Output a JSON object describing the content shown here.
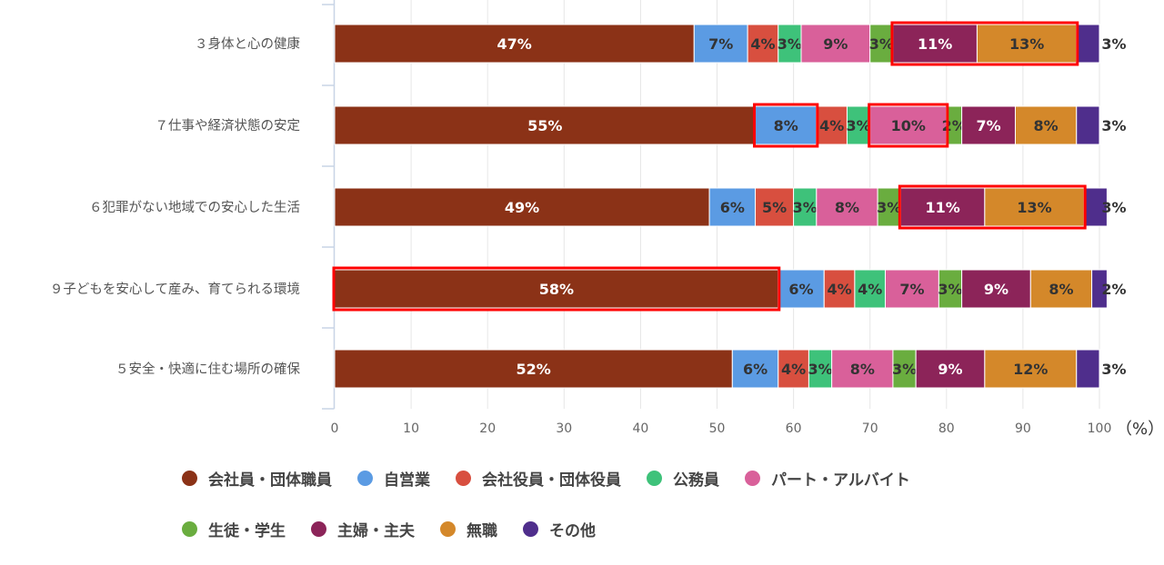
{
  "chart_data": {
    "type": "bar",
    "orientation": "horizontal",
    "stacked": true,
    "categories": [
      "３身体と心の健康",
      "７仕事や経済状態の安定",
      "６犯罪がない地域での安心した生活",
      "９子どもを安心して産み、育てられる環境",
      "５安全・快適に住む場所の確保"
    ],
    "series": [
      {
        "name": "会社員・団体職員",
        "color": "#8b3217",
        "values": [
          47,
          55,
          49,
          58,
          52
        ],
        "labels": [
          "47%",
          "55%",
          "49%",
          "58%",
          "52%"
        ]
      },
      {
        "name": "自営業",
        "color": "#5b9be3",
        "values": [
          7,
          8,
          6,
          6,
          6
        ],
        "labels": [
          "7%",
          "8%",
          "6%",
          "6%",
          "6%"
        ]
      },
      {
        "name": "会社役員・団体役員",
        "color": "#d84f3f",
        "values": [
          4,
          4,
          5,
          4,
          4
        ],
        "labels": [
          "4%",
          "4%",
          "5%",
          "4%",
          "4%"
        ]
      },
      {
        "name": "公務員",
        "color": "#3ec27a",
        "values": [
          3,
          3,
          3,
          4,
          3
        ],
        "labels": [
          "3%",
          "3%",
          "3%",
          "4%",
          "3%"
        ]
      },
      {
        "name": "パート・アルバイト",
        "color": "#d9609a",
        "values": [
          9,
          10,
          8,
          7,
          8
        ],
        "labels": [
          "9%",
          "10%",
          "8%",
          "7%",
          "8%"
        ]
      },
      {
        "name": "生徒・学生",
        "color": "#6aad3f",
        "values": [
          3,
          2,
          3,
          3,
          3
        ],
        "labels": [
          "3%",
          "2%",
          "3%",
          "3%",
          "3%"
        ]
      },
      {
        "name": "主婦・主夫",
        "color": "#8c2459",
        "values": [
          11,
          7,
          11,
          9,
          9
        ],
        "labels": [
          "11%",
          "7%",
          "11%",
          "9%",
          "9%"
        ]
      },
      {
        "name": "無職",
        "color": "#d4882a",
        "values": [
          13,
          8,
          13,
          8,
          12
        ],
        "labels": [
          "13%",
          "8%",
          "13%",
          "8%",
          "12%"
        ]
      },
      {
        "name": "その他",
        "color": "#4f2e8c",
        "values": [
          3,
          3,
          3,
          2,
          3
        ],
        "labels": [
          "3%",
          "3%",
          "3%",
          "2%",
          "3%"
        ]
      }
    ],
    "highlighted": [
      {
        "row": 0,
        "series": [
          6,
          7
        ]
      },
      {
        "row": 1,
        "series": [
          1
        ]
      },
      {
        "row": 1,
        "series": [
          4
        ]
      },
      {
        "row": 2,
        "series": [
          6,
          7
        ]
      },
      {
        "row": 3,
        "series": [
          0
        ]
      }
    ],
    "xlim": [
      0,
      100
    ],
    "xticks": [
      0,
      10,
      20,
      30,
      40,
      50,
      60,
      70,
      80,
      90,
      100
    ],
    "xunit": "（%）",
    "grid": true,
    "legend_position": "bottom",
    "highlight_color": "#ff0000"
  }
}
